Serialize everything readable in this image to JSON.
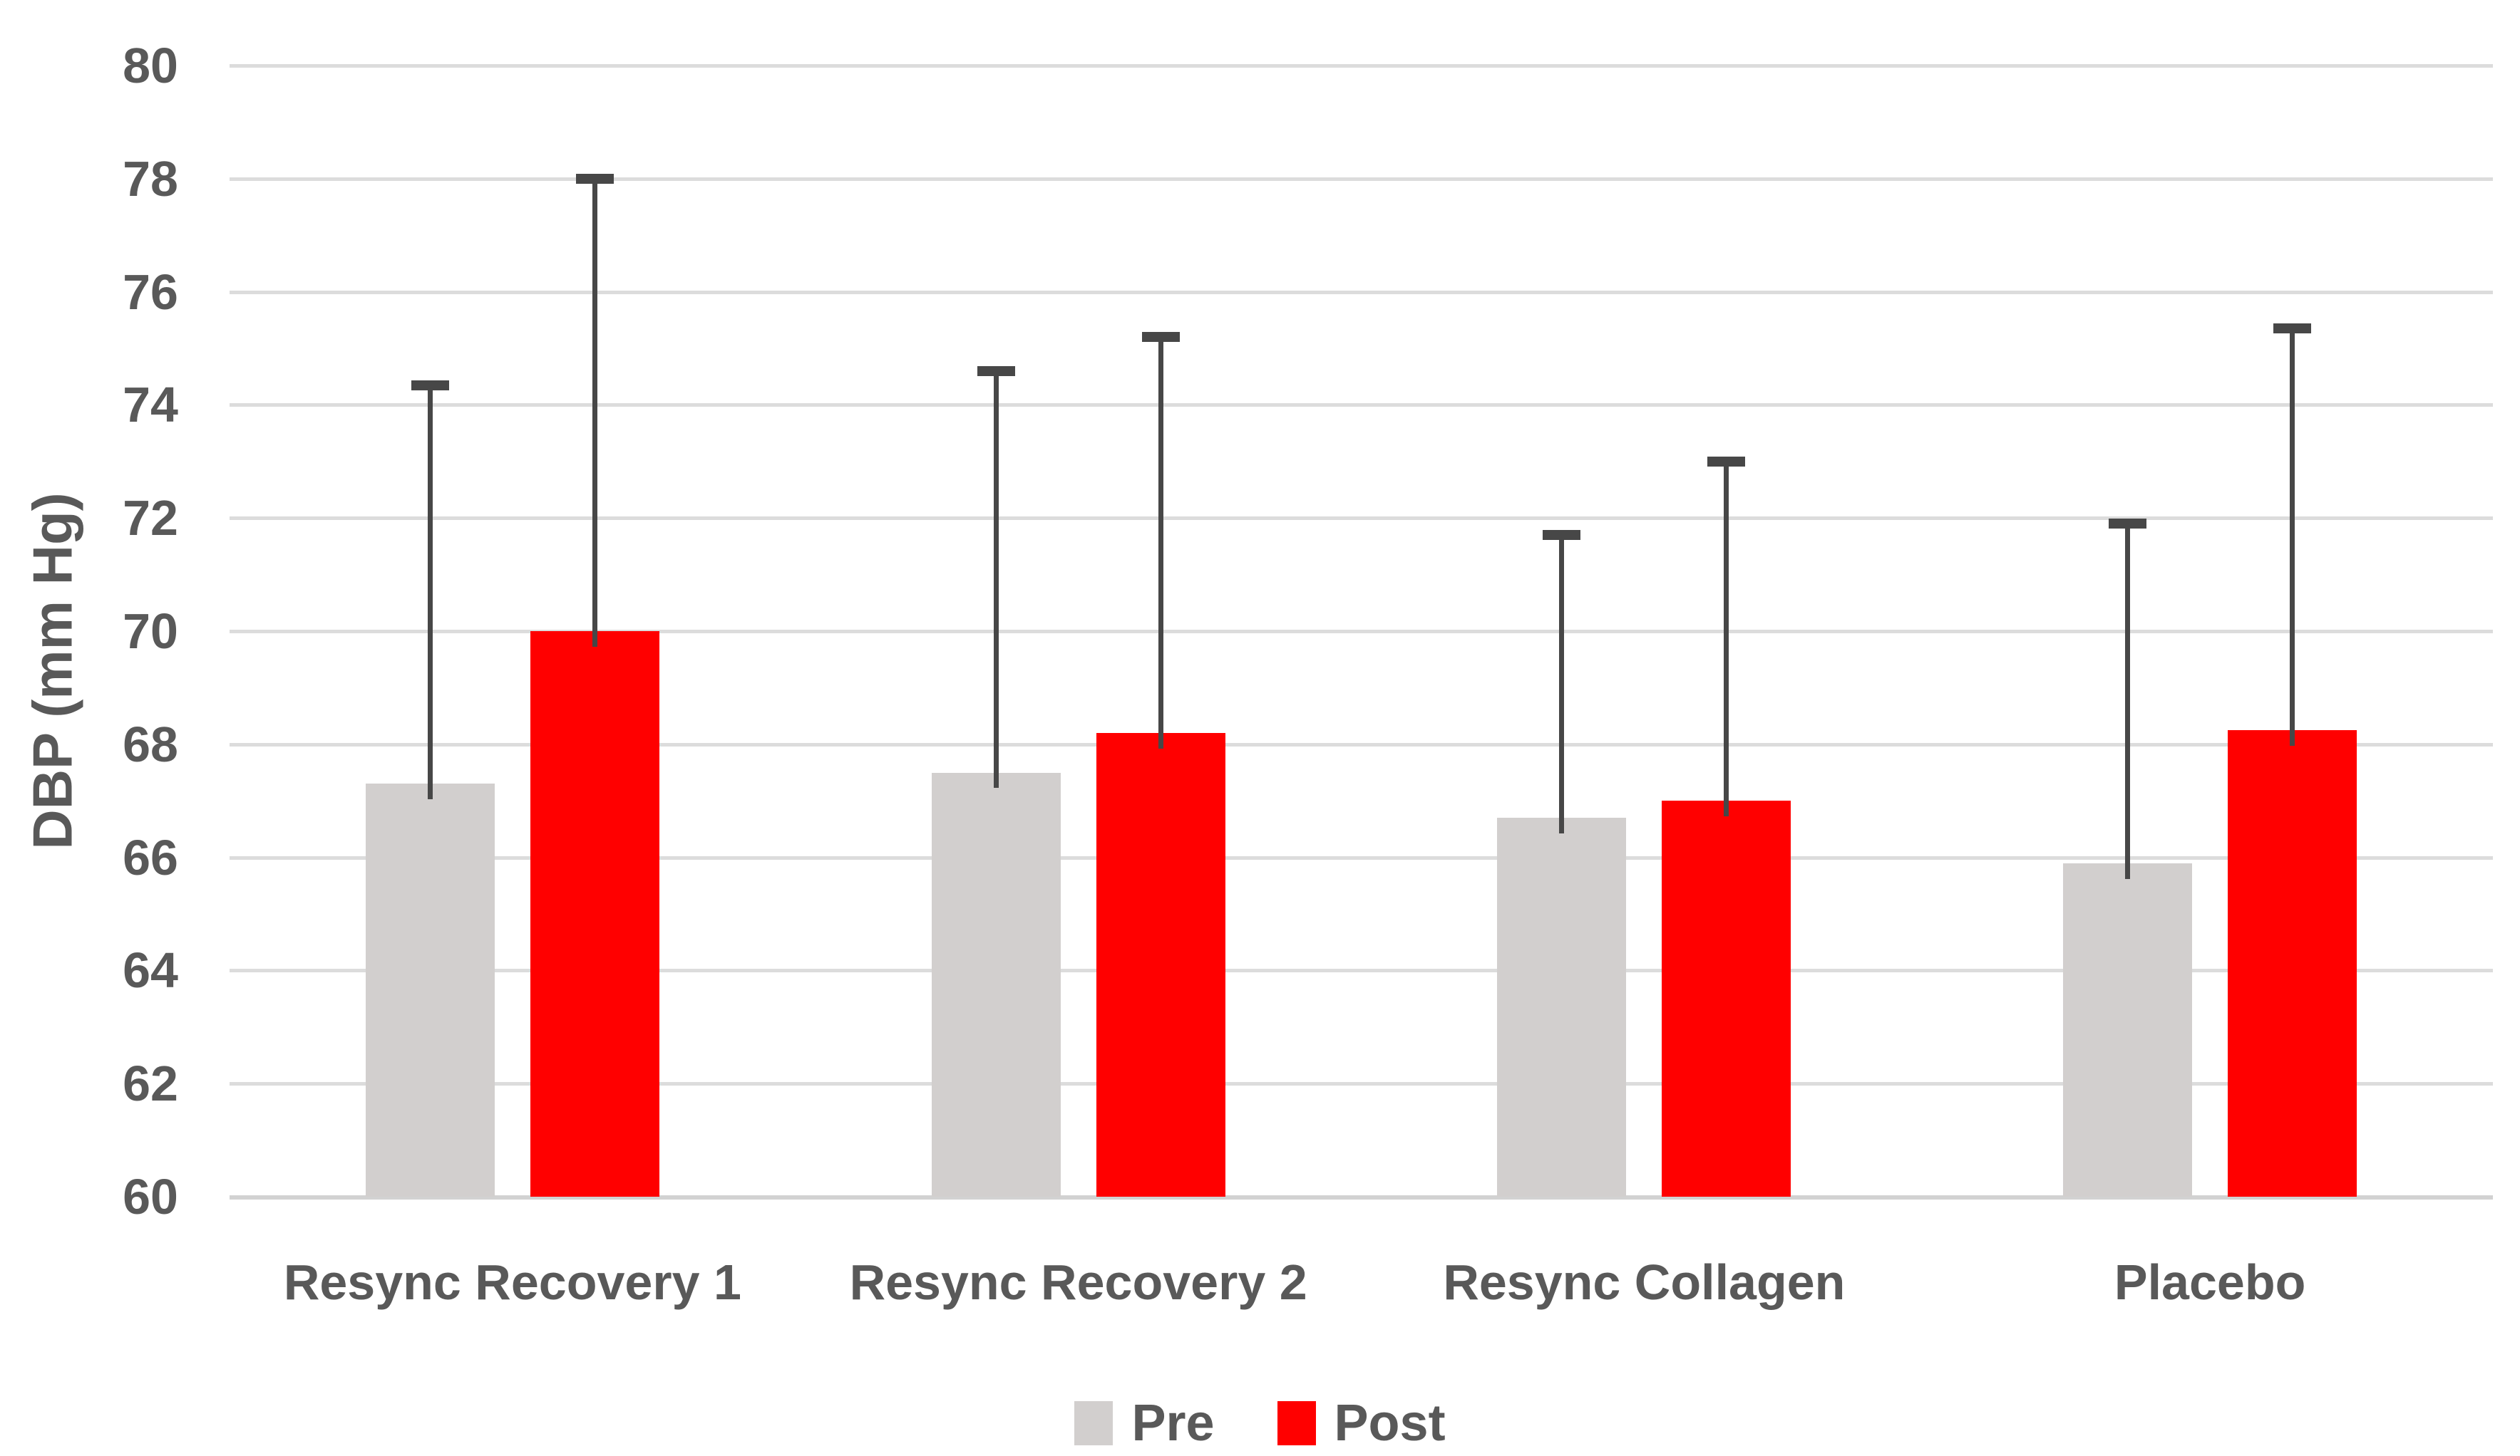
{
  "chart_data": {
    "type": "bar",
    "title": "",
    "xlabel": "",
    "ylabel": "DBP (mm Hg)",
    "ylim": [
      60,
      80
    ],
    "ytick_step": 2,
    "ytick_labels": [
      "60",
      "62",
      "64",
      "66",
      "68",
      "70",
      "72",
      "74",
      "76",
      "78",
      "80"
    ],
    "grid": true,
    "legend_position": "bottom",
    "categories": [
      "Resync Recovery 1",
      "Resync Recovery 2",
      "Resync Collagen",
      "Placebo"
    ],
    "series": [
      {
        "name": "Pre",
        "color": "#D2CFCE",
        "values": [
          67.3,
          67.5,
          66.7,
          65.9
        ],
        "error_top": [
          74.35,
          74.6,
          71.7,
          71.9
        ]
      },
      {
        "name": "Post",
        "color": "#FF0000",
        "values": [
          70.0,
          68.2,
          67.0,
          68.25
        ],
        "error_top": [
          78.0,
          75.2,
          73.0,
          75.35
        ]
      }
    ]
  },
  "colors": {
    "text": "#595959",
    "gridline": "#DCDCDC",
    "axis_line": "#D2D2D2",
    "error_bar": "#474747",
    "background": "#FFFFFF"
  }
}
